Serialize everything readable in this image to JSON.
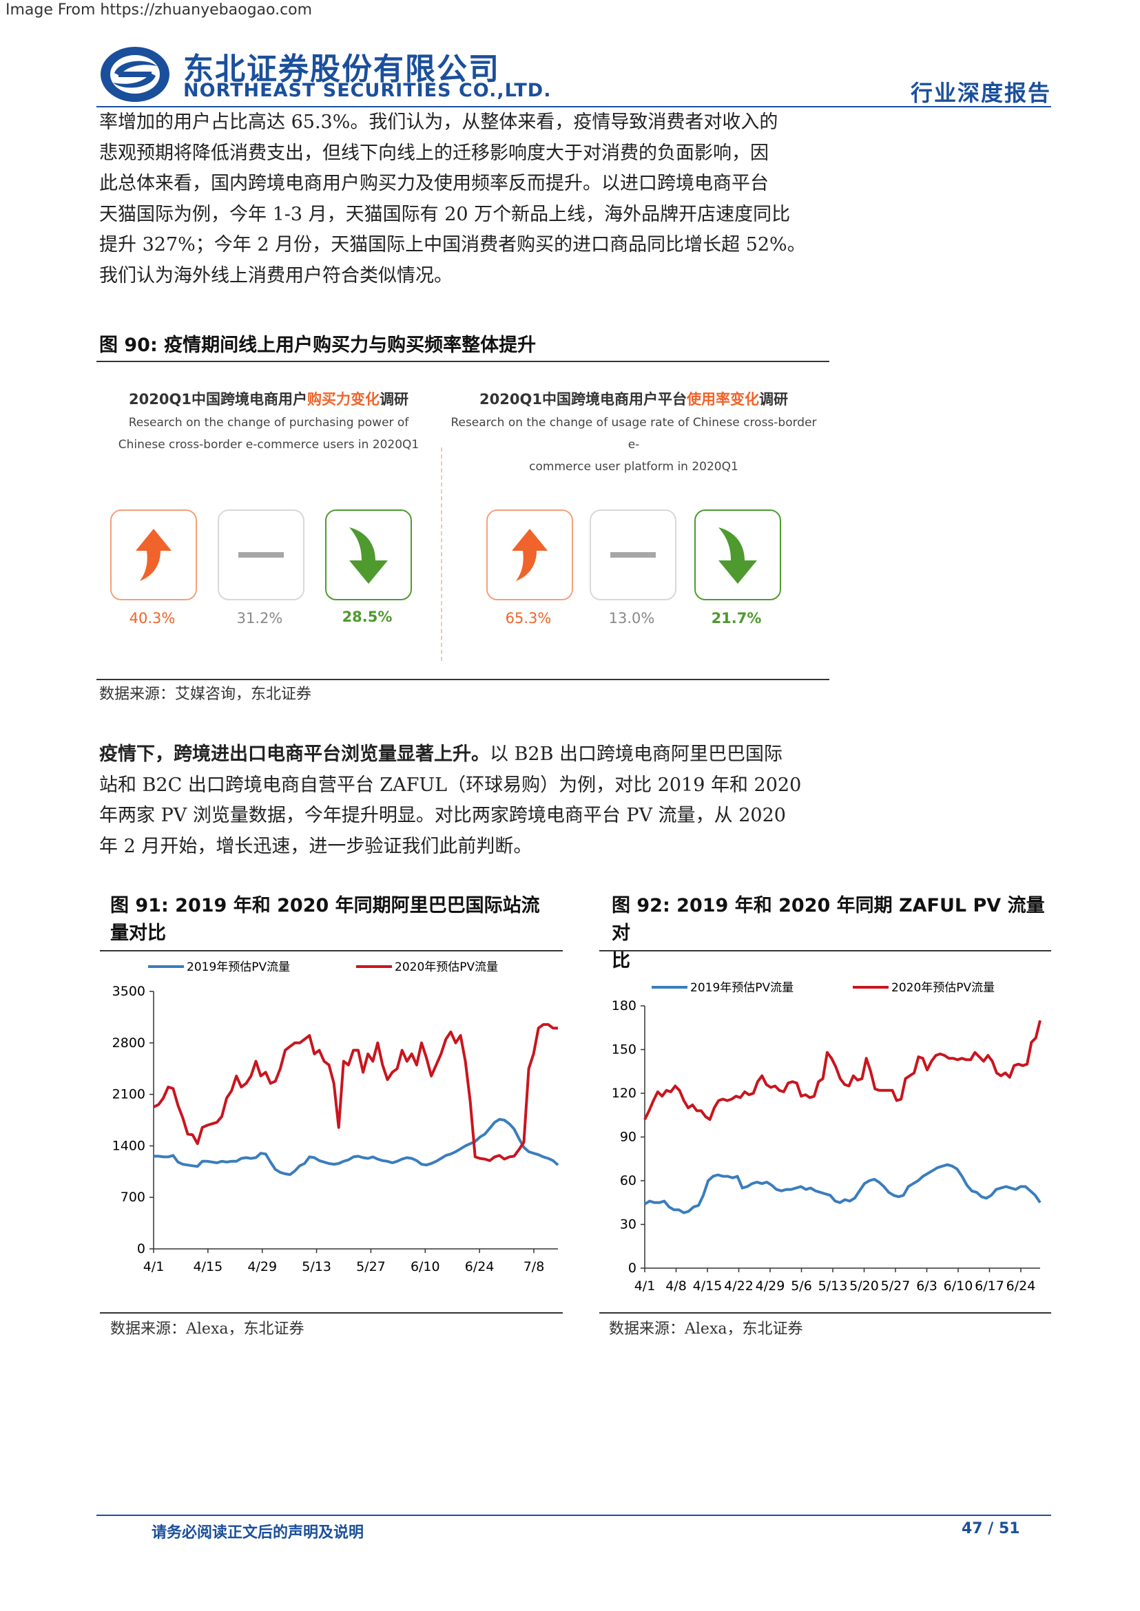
{
  "source_watermark": "Image From https://zhuanyebaogao.com",
  "header": {
    "company_cn": "东北证券股份有限公司",
    "company_en": "NORTHEAST SECURITIES CO.,LTD.",
    "report_type": "行业深度报告"
  },
  "intro_lines": [
    "率增加的用户占比高达 65.3%。我们认为，从整体来看，疫情导致消费者对收入的",
    "悲观预期将降低消费支出，但线下向线上的迁移影响度大于对消费的负面影响，因",
    "此总体来看，国内跨境电商用户购买力及使用频率反而提升。以进口跨境电商平台",
    "天猫国际为例，今年 1-3 月，天猫国际有 20 万个新品上线，海外品牌开店速度同比",
    "提升 327%；今年 2 月份，天猫国际上中国消费者购买的进口商品同比增长超 52%。",
    "我们认为海外线上消费用户符合类似情况。"
  ],
  "fig90": {
    "title": "图  90:  疫情期间线上用户购买力与购买频率整体提升",
    "left": {
      "title_pre": "2020Q1中国跨境电商用户",
      "title_hl": "购买力变化",
      "title_post": "调研",
      "sub1": "Research on the change of purchasing power of",
      "sub2": "Chinese cross-border e-commerce users in 2020Q1",
      "values": [
        "40.3%",
        "31.2%",
        "28.5%"
      ]
    },
    "right": {
      "title_pre": "2020Q1中国跨境电商用户平台",
      "title_hl": "使用率变化",
      "title_post": "调研",
      "sub1": "Research on the change of usage rate of Chinese cross-border e-",
      "sub2": "commerce user platform in 2020Q1",
      "values": [
        "65.3%",
        "13.0%",
        "21.7%"
      ]
    },
    "colors": {
      "up": "#f0632a",
      "flat": "#9a9a9a",
      "down": "#4e9a2f"
    },
    "note": "数据来源：艾媒咨询，东北证券"
  },
  "para2": {
    "bold": "疫情下，跨境进出口电商平台浏览量显著上升。",
    "lines": [
      "以 B2B 出口跨境电商阿里巴巴国际",
      "站和 B2C 出口跨境电商自营平台 ZAFUL（环球易购）为例，对比 2019 年和 2020",
      "年两家 PV 浏览量数据，今年提升明显。对比两家跨境电商平台 PV 流量，从 2020",
      "年 2 月开始，增长迅速，进一步验证我们此前判断。"
    ]
  },
  "fig91": {
    "title_line1": "图  91:   2019 年和   2020 年同期阿里巴巴国际站流",
    "title_line2": "量对比",
    "note": "数据来源：Alexa，东北证券"
  },
  "fig92": {
    "title_line1": "图  92:  2019 年和   2020 年同期 ZAFUL PV 流量对",
    "title_line2": "比",
    "note": "数据来源：Alexa，东北证券"
  },
  "footer": {
    "disclaimer": "请务必阅读正文后的声明及说明",
    "page": "47 / 51"
  },
  "chart_data": [
    {
      "type": "line",
      "id": "fig91",
      "x_ticks": [
        "4/1",
        "4/15",
        "4/29",
        "5/13",
        "5/27",
        "6/10",
        "6/24",
        "7/8"
      ],
      "ylim": [
        0,
        3500
      ],
      "y_ticks": [
        0,
        700,
        1400,
        2100,
        2800,
        3500
      ],
      "series": [
        {
          "name": "2019年预估PV流量",
          "color": "#3a7dbd",
          "values": [
            1260,
            1260,
            1250,
            1250,
            1270,
            1180,
            1150,
            1140,
            1130,
            1120,
            1190,
            1190,
            1180,
            1170,
            1190,
            1180,
            1190,
            1190,
            1230,
            1240,
            1230,
            1240,
            1300,
            1290,
            1180,
            1080,
            1040,
            1020,
            1010,
            1060,
            1130,
            1160,
            1250,
            1240,
            1200,
            1180,
            1160,
            1150,
            1160,
            1190,
            1210,
            1250,
            1260,
            1240,
            1230,
            1250,
            1220,
            1200,
            1190,
            1170,
            1190,
            1220,
            1240,
            1230,
            1200,
            1150,
            1140,
            1160,
            1190,
            1230,
            1270,
            1290,
            1320,
            1360,
            1400,
            1430,
            1460,
            1520,
            1560,
            1640,
            1720,
            1760,
            1750,
            1700,
            1630,
            1500,
            1380,
            1320,
            1300,
            1280,
            1250,
            1230,
            1200,
            1140
          ]
        },
        {
          "name": "2020年预估PV流量",
          "color": "#c9151e",
          "values": [
            1930,
            1960,
            2050,
            2200,
            2180,
            1950,
            1780,
            1560,
            1550,
            1430,
            1650,
            1680,
            1700,
            1720,
            1800,
            2050,
            2150,
            2350,
            2200,
            2250,
            2350,
            2550,
            2350,
            2400,
            2250,
            2280,
            2450,
            2700,
            2750,
            2800,
            2800,
            2850,
            2900,
            2650,
            2700,
            2550,
            2500,
            2250,
            1650,
            2550,
            2500,
            2700,
            2700,
            2400,
            2650,
            2550,
            2800,
            2500,
            2300,
            2400,
            2450,
            2700,
            2550,
            2650,
            2500,
            2800,
            2600,
            2350,
            2500,
            2650,
            2850,
            2950,
            2800,
            2900,
            2550,
            2000,
            1250,
            1230,
            1220,
            1200,
            1250,
            1270,
            1220,
            1250,
            1260,
            1350,
            1450,
            2450,
            2650,
            3000,
            3050,
            3050,
            3000,
            3000
          ]
        }
      ]
    },
    {
      "type": "line",
      "id": "fig92",
      "x_ticks": [
        "4/1",
        "4/8",
        "4/15",
        "4/22",
        "4/29",
        "5/6",
        "5/13",
        "5/20",
        "5/27",
        "6/3",
        "6/10",
        "6/17",
        "6/24"
      ],
      "ylim": [
        0,
        180
      ],
      "y_ticks": [
        0,
        30,
        60,
        90,
        120,
        150,
        180
      ],
      "series": [
        {
          "name": "2019年预估PV流量",
          "color": "#3a7dbd",
          "values": [
            44,
            46,
            45,
            45,
            46,
            42,
            40,
            40,
            38,
            39,
            42,
            43,
            50,
            60,
            63,
            64,
            63,
            63,
            62,
            63,
            55,
            56,
            58,
            59,
            58,
            59,
            57,
            54,
            53,
            54,
            54,
            55,
            56,
            54,
            55,
            53,
            52,
            51,
            50,
            46,
            45,
            47,
            46,
            48,
            53,
            58,
            60,
            61,
            59,
            56,
            52,
            50,
            49,
            50,
            56,
            58,
            60,
            63,
            65,
            67,
            69,
            70,
            71,
            70,
            68,
            63,
            57,
            53,
            52,
            49,
            48,
            50,
            54,
            55,
            56,
            55,
            54,
            56,
            56,
            53,
            50,
            45
          ]
        },
        {
          "name": "2020年预估PV流量",
          "color": "#c9151e",
          "values": [
            102,
            108,
            115,
            121,
            118,
            122,
            121,
            125,
            122,
            115,
            110,
            112,
            108,
            108,
            104,
            102,
            110,
            115,
            116,
            115,
            116,
            118,
            117,
            121,
            119,
            120,
            128,
            132,
            126,
            124,
            125,
            122,
            121,
            127,
            128,
            127,
            118,
            119,
            117,
            118,
            128,
            130,
            148,
            144,
            138,
            130,
            126,
            125,
            132,
            129,
            130,
            144,
            135,
            123,
            122,
            122,
            122,
            122,
            115,
            116,
            130,
            132,
            134,
            145,
            144,
            136,
            142,
            146,
            147,
            146,
            144,
            144,
            143,
            144,
            143,
            143,
            148,
            145,
            142,
            146,
            142,
            134,
            132,
            134,
            131,
            139,
            140,
            139,
            140,
            155,
            158,
            170
          ]
        }
      ]
    }
  ]
}
